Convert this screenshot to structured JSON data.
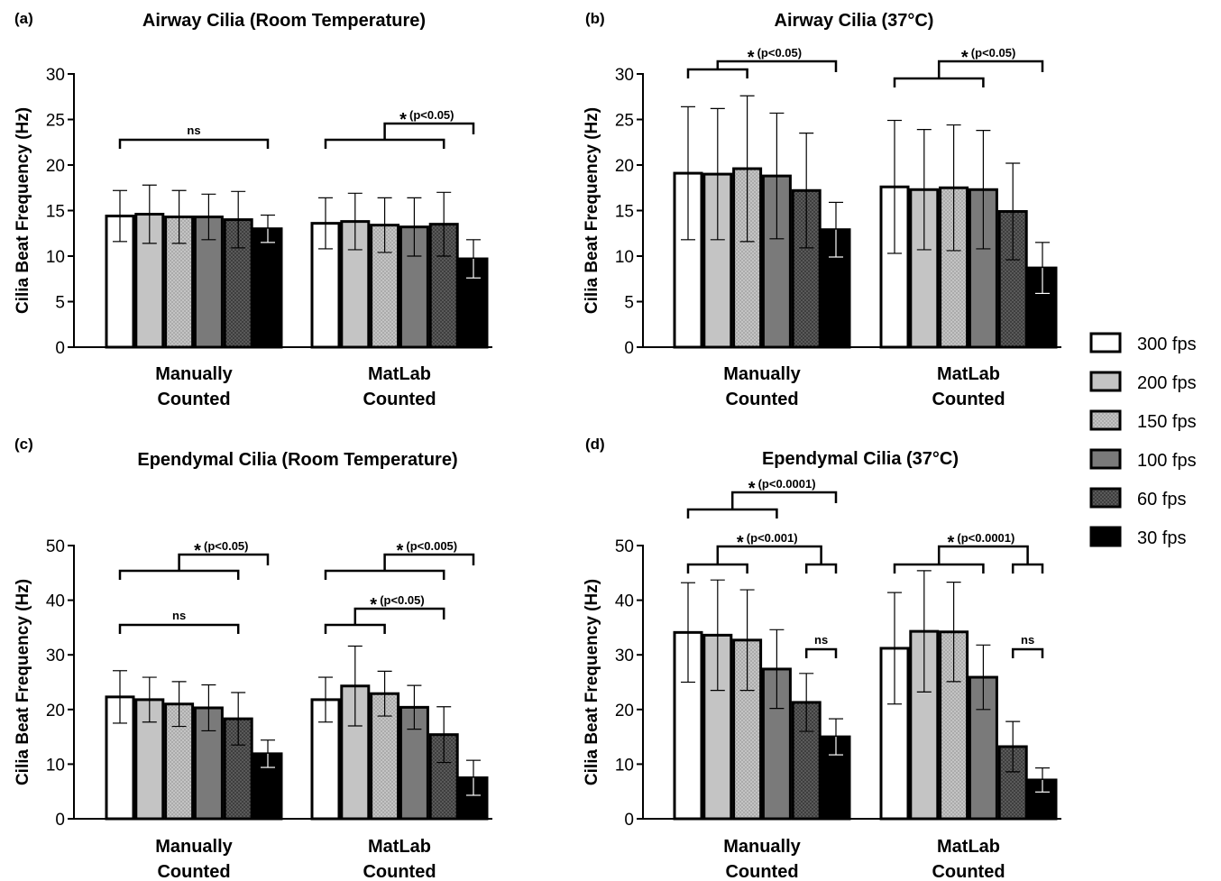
{
  "legend": {
    "position": "right",
    "items": [
      {
        "label": "300 fps",
        "fill": "#ffffff",
        "pattern": "none"
      },
      {
        "label": "200 fps",
        "fill": "#c4c4c4",
        "pattern": "none"
      },
      {
        "label": "150 fps",
        "fill": "#c4c4c4",
        "pattern": "dots-light"
      },
      {
        "label": "100 fps",
        "fill": "#7a7a7a",
        "pattern": "none"
      },
      {
        "label": "60 fps",
        "fill": "#555555",
        "pattern": "dots-dark"
      },
      {
        "label": "30 fps",
        "fill": "#000000",
        "pattern": "none"
      }
    ]
  },
  "chart_data": [
    {
      "panel": "(a)",
      "type": "bar",
      "title": "Airway Cilia (Room Temperature)",
      "ylabel": "Cilia Beat Frequency (Hz)",
      "ylim": [
        0,
        30
      ],
      "yticks": [
        0,
        5,
        10,
        15,
        20,
        25,
        30
      ],
      "categories": [
        "Manually\nCounted",
        "MatLab\nCounted"
      ],
      "series": [
        {
          "name": "300 fps",
          "values": [
            14.4,
            13.6
          ],
          "errors": [
            2.8,
            2.8
          ]
        },
        {
          "name": "200 fps",
          "values": [
            14.6,
            13.8
          ],
          "errors": [
            3.2,
            3.1
          ]
        },
        {
          "name": "150 fps",
          "values": [
            14.3,
            13.4
          ],
          "errors": [
            2.9,
            3.0
          ]
        },
        {
          "name": "100 fps",
          "values": [
            14.3,
            13.2
          ],
          "errors": [
            2.5,
            3.2
          ]
        },
        {
          "name": "60 fps",
          "values": [
            14.0,
            13.5
          ],
          "errors": [
            3.1,
            3.5
          ]
        },
        {
          "name": "30 fps",
          "values": [
            13.0,
            9.7
          ],
          "errors": [
            1.5,
            2.1
          ]
        }
      ],
      "annotations": [
        {
          "text": "ns",
          "group": 0,
          "left": [
            0,
            5
          ],
          "right": null
        },
        {
          "text": "(p<0.05)",
          "star": true,
          "group": 1,
          "left": [
            0,
            4
          ],
          "right": [
            5,
            5
          ]
        }
      ]
    },
    {
      "panel": "(b)",
      "type": "bar",
      "title": "Airway Cilia (37°C)",
      "ylabel": "Cilia Beat Frequency (Hz)",
      "ylim": [
        0,
        30
      ],
      "yticks": [
        0,
        5,
        10,
        15,
        20,
        25,
        30
      ],
      "categories": [
        "Manually\nCounted",
        "MatLab\nCounted"
      ],
      "series": [
        {
          "name": "300 fps",
          "values": [
            19.1,
            17.6
          ],
          "errors": [
            7.3,
            7.3
          ]
        },
        {
          "name": "200 fps",
          "values": [
            19.0,
            17.3
          ],
          "errors": [
            7.2,
            6.6
          ]
        },
        {
          "name": "150 fps",
          "values": [
            19.6,
            17.5
          ],
          "errors": [
            8.0,
            6.9
          ]
        },
        {
          "name": "100 fps",
          "values": [
            18.8,
            17.3
          ],
          "errors": [
            6.9,
            6.5
          ]
        },
        {
          "name": "60 fps",
          "values": [
            17.2,
            14.9
          ],
          "errors": [
            6.3,
            5.3
          ]
        },
        {
          "name": "30 fps",
          "values": [
            12.9,
            8.7
          ],
          "errors": [
            3.0,
            2.8
          ]
        }
      ],
      "annotations": [
        {
          "text": "(p<0.05)",
          "star": true,
          "group": 0,
          "left": [
            0,
            2
          ],
          "right": [
            5,
            5
          ]
        },
        {
          "text": "(p<0.05)",
          "star": true,
          "group": 1,
          "left": [
            0,
            3
          ],
          "right": [
            5,
            5
          ]
        }
      ]
    },
    {
      "panel": "(c)",
      "type": "bar",
      "title": "Ependymal Cilia (Room Temperature)",
      "ylabel": "Cilia Beat Frequency (Hz)",
      "ylim": [
        0,
        50
      ],
      "yticks": [
        0,
        10,
        20,
        30,
        40,
        50
      ],
      "categories": [
        "Manually\nCounted",
        "MatLab\nCounted"
      ],
      "series": [
        {
          "name": "300 fps",
          "values": [
            22.3,
            21.8
          ],
          "errors": [
            4.8,
            4.1
          ]
        },
        {
          "name": "200 fps",
          "values": [
            21.8,
            24.3
          ],
          "errors": [
            4.1,
            7.3
          ]
        },
        {
          "name": "150 fps",
          "values": [
            21.0,
            22.9
          ],
          "errors": [
            4.1,
            4.1
          ]
        },
        {
          "name": "100 fps",
          "values": [
            20.3,
            20.4
          ],
          "errors": [
            4.2,
            4.0
          ]
        },
        {
          "name": "60 fps",
          "values": [
            18.3,
            15.4
          ],
          "errors": [
            4.8,
            5.1
          ]
        },
        {
          "name": "30 fps",
          "values": [
            11.9,
            7.5
          ],
          "errors": [
            2.5,
            3.2
          ]
        }
      ],
      "annotations": [
        {
          "text": "(p<0.05)",
          "star": true,
          "group": 0,
          "left": [
            0,
            4
          ],
          "right": [
            5,
            5
          ]
        },
        {
          "text": "ns",
          "group": 0,
          "left": [
            0,
            4
          ],
          "right": null
        },
        {
          "text": "(p<0.005)",
          "star": true,
          "group": 1,
          "left": [
            0,
            4
          ],
          "right": [
            5,
            5
          ]
        },
        {
          "text": "(p<0.05)",
          "star": true,
          "group": 1,
          "left": [
            0,
            2
          ],
          "right": [
            4,
            4
          ]
        }
      ]
    },
    {
      "panel": "(d)",
      "type": "bar",
      "title": "Ependymal Cilia (37°C)",
      "ylabel": "Cilia Beat Frequency (Hz)",
      "ylim": [
        0,
        50
      ],
      "yticks": [
        0,
        10,
        20,
        30,
        40,
        50
      ],
      "categories": [
        "Manually\nCounted",
        "MatLab\nCounted"
      ],
      "series": [
        {
          "name": "300 fps",
          "values": [
            34.1,
            31.2
          ],
          "errors": [
            9.1,
            10.2
          ]
        },
        {
          "name": "200 fps",
          "values": [
            33.6,
            34.3
          ],
          "errors": [
            10.1,
            11.1
          ]
        },
        {
          "name": "150 fps",
          "values": [
            32.7,
            34.2
          ],
          "errors": [
            9.2,
            9.1
          ]
        },
        {
          "name": "100 fps",
          "values": [
            27.4,
            25.9
          ],
          "errors": [
            7.2,
            5.9
          ]
        },
        {
          "name": "60 fps",
          "values": [
            21.3,
            13.2
          ],
          "errors": [
            5.3,
            4.6
          ]
        },
        {
          "name": "30 fps",
          "values": [
            15.0,
            7.1
          ],
          "errors": [
            3.3,
            2.2
          ]
        }
      ],
      "annotations": [
        {
          "text": "(p<0.0001)",
          "star": true,
          "group": 0,
          "left": [
            0,
            3
          ],
          "right": [
            5,
            5
          ]
        },
        {
          "text": "(p<0.001)",
          "star": true,
          "group": 0,
          "left": [
            0,
            2
          ],
          "right": [
            4,
            5
          ]
        },
        {
          "text": "ns",
          "group": 0,
          "left": [
            4,
            5
          ],
          "right": null
        },
        {
          "text": "(p<0.0001)",
          "star": true,
          "group": 1,
          "left": [
            0,
            3
          ],
          "right": [
            4,
            5
          ]
        },
        {
          "text": "ns",
          "group": 1,
          "left": [
            4,
            5
          ],
          "right": null
        }
      ]
    }
  ]
}
